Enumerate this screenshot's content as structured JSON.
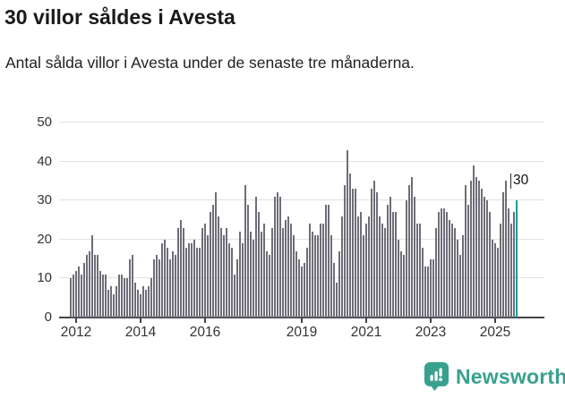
{
  "header": {
    "title": "30 villor såldes i Avesta",
    "subtitle": "Antal sålda villor i Avesta under de senaste tre månaderna."
  },
  "chart_data": {
    "type": "bar",
    "title": "30 villor såldes i Avesta",
    "subtitle": "Antal sålda villor i Avesta under de senaste tre månaderna.",
    "x_start": "2011-11",
    "x_end": "2025-09",
    "frequency": "monthly",
    "values": [
      10,
      11,
      12,
      13,
      11,
      14,
      16,
      17,
      21,
      16,
      16,
      12,
      11,
      11,
      7,
      8,
      6,
      8,
      11,
      11,
      10,
      10,
      15,
      16,
      9,
      7,
      6,
      8,
      7,
      8,
      10,
      15,
      16,
      15,
      19,
      20,
      18,
      15,
      17,
      16,
      23,
      25,
      23,
      18,
      19,
      19,
      20,
      18,
      18,
      23,
      24,
      21,
      27,
      29,
      32,
      26,
      23,
      21,
      23,
      19,
      18,
      11,
      15,
      22,
      19,
      34,
      29,
      22,
      20,
      31,
      27,
      22,
      24,
      17,
      16,
      23,
      31,
      32,
      31,
      23,
      25,
      26,
      24,
      21,
      17,
      15,
      13,
      14,
      18,
      24,
      22,
      21,
      21,
      24,
      24,
      29,
      29,
      21,
      14,
      9,
      17,
      26,
      34,
      43,
      37,
      33,
      33,
      26,
      27,
      21,
      24,
      26,
      33,
      35,
      32,
      26,
      24,
      23,
      29,
      31,
      27,
      27,
      20,
      17,
      16,
      30,
      34,
      36,
      31,
      24,
      24,
      18,
      13,
      13,
      15,
      15,
      23,
      27,
      28,
      28,
      27,
      25,
      24,
      23,
      20,
      16,
      21,
      34,
      29,
      35,
      39,
      36,
      35,
      33,
      31,
      30,
      27,
      20,
      19,
      18,
      24,
      32,
      35,
      28,
      24,
      27,
      30
    ],
    "ylim": [
      0,
      50
    ],
    "yticks": [
      0,
      10,
      20,
      30,
      40,
      50
    ],
    "xticks": [
      {
        "label": "2012",
        "index": 2
      },
      {
        "label": "2014",
        "index": 26
      },
      {
        "label": "2016",
        "index": 50
      },
      {
        "label": "2019",
        "index": 86
      },
      {
        "label": "2021",
        "index": 110
      },
      {
        "label": "2023",
        "index": 134
      },
      {
        "label": "2025",
        "index": 158
      }
    ],
    "grid": true,
    "legend": "none",
    "bar_color": "#6e6e78",
    "axis_color": "#43434a",
    "gridline_color": "#e0e0e0",
    "highlight": {
      "index": 166,
      "value": 30,
      "label": "30",
      "color": "#00a099"
    }
  },
  "footer": {
    "brand": "Newsworthy",
    "brand_color": "#38a18e",
    "logo_icon": "bar-chart-speech-bubble-icon"
  }
}
